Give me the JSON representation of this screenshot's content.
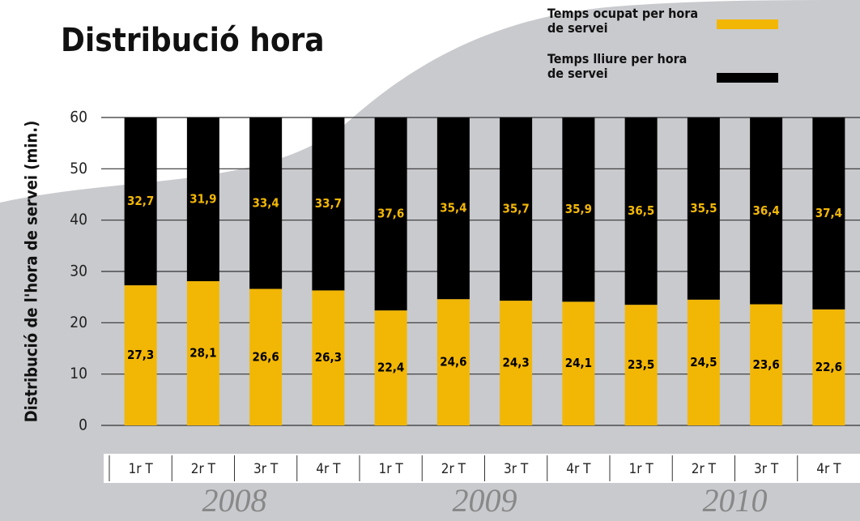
{
  "chart_data": {
    "type": "stacked_bar",
    "title": "Distribució hora",
    "y_label": "Distribució de l'hora de servei (min.)",
    "categories": [
      "1r T",
      "2r T",
      "3r T",
      "4r T",
      "1r T",
      "2r T",
      "3r T",
      "4r T",
      "1r T",
      "2r T",
      "3r T",
      "4r T"
    ],
    "groups": [
      "2008",
      "2009",
      "2010"
    ],
    "series": [
      {
        "name": "Temps ocupat per hora de servei",
        "color": "#f2b705",
        "values": [
          27.3,
          28.1,
          26.6,
          26.3,
          22.4,
          24.6,
          24.3,
          24.1,
          23.5,
          24.5,
          23.6,
          22.6
        ],
        "value_labels": [
          "27,3",
          "28,1",
          "26,6",
          "26,3",
          "22,4",
          "24,6",
          "24,3",
          "24,1",
          "23,5",
          "24,5",
          "23,6",
          "22,6"
        ]
      },
      {
        "name": "Temps lliure per hora de servei",
        "color": "#000000",
        "values": [
          32.7,
          31.9,
          33.4,
          33.7,
          37.6,
          35.4,
          35.7,
          35.9,
          36.5,
          35.5,
          36.4,
          37.4
        ],
        "value_labels": [
          "32,7",
          "31,9",
          "33,4",
          "33,7",
          "37,6",
          "35,4",
          "35,7",
          "35,9",
          "36,5",
          "35,5",
          "36,4",
          "37,4"
        ]
      }
    ],
    "ylim": [
      0,
      60
    ],
    "yticks": [
      0,
      10,
      20,
      30,
      40,
      50,
      60
    ],
    "grid": true
  }
}
